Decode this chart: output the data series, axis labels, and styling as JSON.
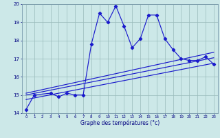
{
  "xlabel": "Graphe des températures (°c)",
  "x": [
    0,
    1,
    2,
    3,
    4,
    5,
    6,
    7,
    8,
    9,
    10,
    11,
    12,
    13,
    14,
    15,
    16,
    17,
    18,
    19,
    20,
    21,
    22,
    23
  ],
  "temp_line": [
    14.2,
    15.0,
    null,
    15.1,
    14.9,
    15.1,
    15.0,
    15.0,
    17.8,
    19.5,
    19.0,
    19.9,
    18.8,
    17.6,
    18.1,
    19.4,
    19.4,
    18.1,
    17.5,
    17.0,
    16.9,
    16.9,
    17.1,
    16.7
  ],
  "line_color": "#1a1acc",
  "bg_color": "#cce8e8",
  "grid_color": "#99bbbb",
  "ylim": [
    14,
    20
  ],
  "xlim": [
    -0.5,
    23.5
  ],
  "yticks": [
    14,
    15,
    16,
    17,
    18,
    19,
    20
  ],
  "xticks": [
    0,
    1,
    2,
    3,
    4,
    5,
    6,
    7,
    8,
    9,
    10,
    11,
    12,
    13,
    14,
    15,
    16,
    17,
    18,
    19,
    20,
    21,
    22,
    23
  ],
  "trend_lines": [
    {
      "x": [
        0,
        23
      ],
      "y": [
        14.75,
        16.75
      ]
    },
    {
      "x": [
        0,
        23
      ],
      "y": [
        15.0,
        17.05
      ]
    },
    {
      "x": [
        0,
        23
      ],
      "y": [
        15.1,
        17.35
      ]
    }
  ]
}
